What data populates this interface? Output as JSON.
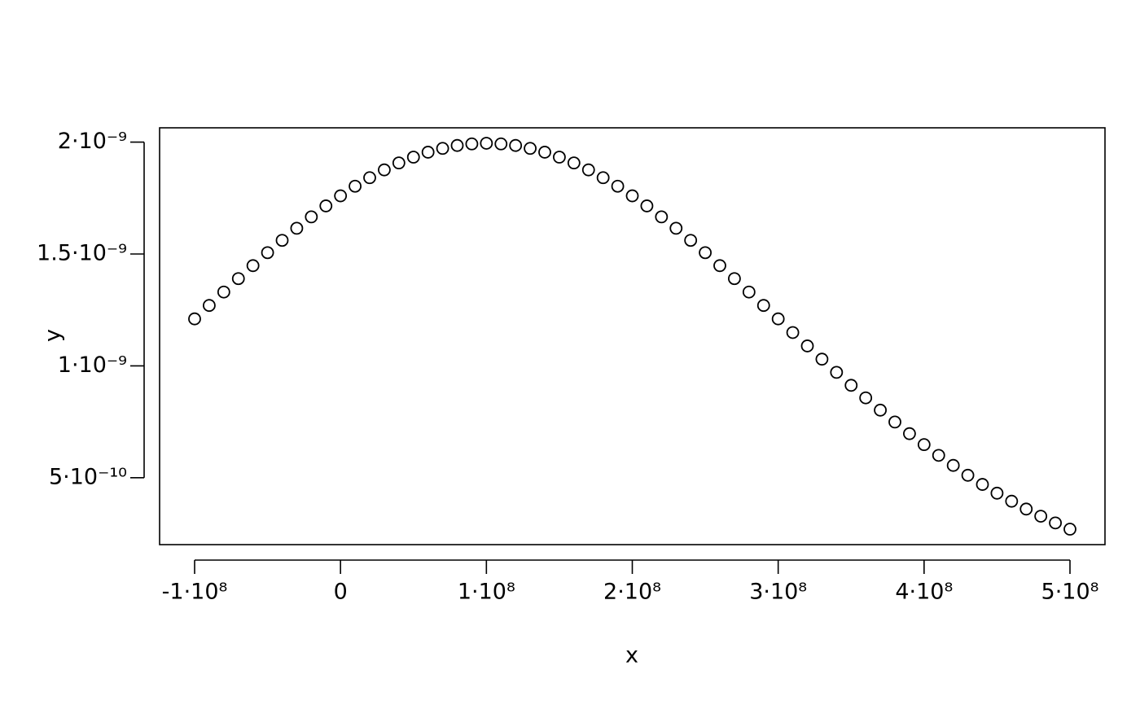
{
  "chart_data": {
    "type": "scatter",
    "x_label": "x",
    "y_label": "y",
    "x": [
      -100000000.0,
      -90000000.0,
      -80000000.0,
      -70000000.0,
      -60000000.0,
      -50000000.0,
      -40000000.0,
      -30000000.0,
      -20000000.0,
      -10000000.0,
      0,
      10000000.0,
      20000000.0,
      30000000.0,
      40000000.0,
      50000000.0,
      60000000.0,
      70000000.0,
      80000000.0,
      90000000.0,
      100000000.0,
      110000000.0,
      120000000.0,
      130000000.0,
      140000000.0,
      150000000.0,
      160000000.0,
      170000000.0,
      180000000.0,
      190000000.0,
      200000000.0,
      210000000.0,
      220000000.0,
      230000000.0,
      240000000.0,
      250000000.0,
      260000000.0,
      270000000.0,
      280000000.0,
      290000000.0,
      300000000.0,
      310000000.0,
      320000000.0,
      330000000.0,
      340000000.0,
      350000000.0,
      360000000.0,
      370000000.0,
      380000000.0,
      390000000.0,
      400000000.0,
      410000000.0,
      420000000.0,
      430000000.0,
      440000000.0,
      450000000.0,
      460000000.0,
      470000000.0,
      480000000.0,
      490000000.0,
      500000000.0
    ],
    "values": [
      1.21e-09,
      1.27e-09,
      1.33e-09,
      1.39e-09,
      1.448e-09,
      1.506e-09,
      1.561e-09,
      1.615e-09,
      1.666e-09,
      1.715e-09,
      1.76e-09,
      1.803e-09,
      1.841e-09,
      1.876e-09,
      1.907e-09,
      1.933e-09,
      1.955e-09,
      1.972e-09,
      1.985e-09,
      1.992e-09,
      1.995e-09,
      1.992e-09,
      1.985e-09,
      1.972e-09,
      1.955e-09,
      1.933e-09,
      1.907e-09,
      1.876e-09,
      1.841e-09,
      1.803e-09,
      1.76e-09,
      1.715e-09,
      1.666e-09,
      1.615e-09,
      1.561e-09,
      1.506e-09,
      1.448e-09,
      1.39e-09,
      1.33e-09,
      1.27e-09,
      1.21e-09,
      1.149e-09,
      1.089e-09,
      1.03e-09,
      9.71e-10,
      9.13e-10,
      8.57e-10,
      8.02e-10,
      7.49e-10,
      6.97e-10,
      6.48e-10,
      6e-10,
      5.55e-10,
      5.11e-10,
      4.7e-10,
      4.31e-10,
      3.95e-10,
      3.6e-10,
      3.28e-10,
      2.98e-10,
      2.7e-10
    ],
    "color": "#000000",
    "xlim": [
      -124000000.0,
      524000000.0
    ],
    "ylim": [
      2.01e-10,
      2.064e-09
    ],
    "xticks": [
      {
        "value": -100000000.0,
        "label": "-1·10⁸"
      },
      0,
      {
        "value": 100000000.0,
        "label": "1·10⁸"
      },
      {
        "value": 200000000.0,
        "label": "2·10⁸"
      },
      {
        "value": 300000000.0,
        "label": "3·10⁸"
      },
      {
        "value": 400000000.0,
        "label": "4·10⁸"
      },
      {
        "value": 500000000.0,
        "label": "5·10⁸"
      }
    ],
    "yticks": [
      {
        "value": 5e-10,
        "label": "5·10⁻¹⁰"
      },
      {
        "value": 1e-09,
        "label": "1·10⁻⁹"
      },
      {
        "value": 1.5e-09,
        "label": "1.5·10⁻⁹"
      },
      {
        "value": 2e-09,
        "label": "2·10⁻⁹"
      }
    ],
    "grid": false
  }
}
